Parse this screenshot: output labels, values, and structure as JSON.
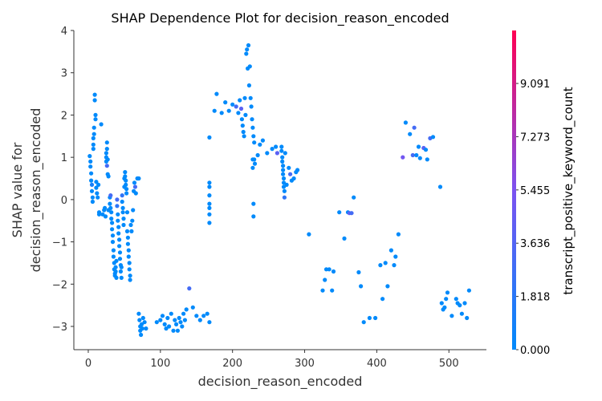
{
  "chart_data": {
    "type": "scatter",
    "title": "SHAP Dependence Plot for decision_reason_encoded",
    "xlabel": "decision_reason_encoded",
    "ylabel_lines": [
      "SHAP value for",
      "decision_reason_encoded"
    ],
    "xlim": [
      -20,
      552
    ],
    "ylim": [
      -3.55,
      4.0
    ],
    "xticks": [
      0,
      100,
      200,
      300,
      400,
      500
    ],
    "yticks": [
      -3,
      -2,
      -1,
      0,
      1,
      2,
      3,
      4
    ],
    "grid": false,
    "colorbar": {
      "label": "transcript_positive_keyword_count",
      "range": [
        0,
        10.9
      ],
      "ticks": [
        "0.000",
        "1.818",
        "3.636",
        "5.455",
        "7.273",
        "9.091"
      ],
      "tick_values": [
        0.0,
        1.818,
        3.636,
        5.455,
        7.273,
        9.091
      ],
      "colors": [
        "#008afb",
        "#7c52f0",
        "#ff0052"
      ]
    },
    "points": [
      [
        2,
        1.03,
        0
      ],
      [
        3,
        0.9,
        0
      ],
      [
        3,
        0.78,
        0
      ],
      [
        4,
        0.62,
        0
      ],
      [
        4,
        0.45,
        0
      ],
      [
        5,
        0.35,
        1
      ],
      [
        5,
        0.2,
        0
      ],
      [
        6,
        0.05,
        0
      ],
      [
        6,
        -0.05,
        0
      ],
      [
        7,
        1.2,
        0
      ],
      [
        7,
        1.3,
        0
      ],
      [
        7,
        1.45,
        0
      ],
      [
        8,
        1.55,
        0
      ],
      [
        8,
        1.7,
        0
      ],
      [
        9,
        2.35,
        0
      ],
      [
        9,
        2.48,
        0
      ],
      [
        10,
        2.0,
        0
      ],
      [
        10,
        1.9,
        0
      ],
      [
        11,
        0.42,
        0
      ],
      [
        11,
        0.28,
        0
      ],
      [
        12,
        0.15,
        0
      ],
      [
        13,
        0.05,
        0
      ],
      [
        14,
        0.35,
        0
      ],
      [
        15,
        -0.3,
        0
      ],
      [
        15,
        -0.35,
        0
      ],
      [
        18,
        1.78,
        0
      ],
      [
        20,
        -0.35,
        0
      ],
      [
        22,
        -0.25,
        0
      ],
      [
        23,
        -0.2,
        0
      ],
      [
        24,
        -0.4,
        0
      ],
      [
        25,
        1.0,
        0
      ],
      [
        25,
        0.9,
        0
      ],
      [
        25,
        1.1,
        0
      ],
      [
        26,
        1.2,
        0
      ],
      [
        26,
        1.35,
        0
      ],
      [
        26,
        0.8,
        3
      ],
      [
        27,
        0.95,
        0
      ],
      [
        27,
        0.6,
        0
      ],
      [
        28,
        0.55,
        0
      ],
      [
        28,
        -0.25,
        0
      ],
      [
        30,
        0.05,
        0
      ],
      [
        30,
        -0.1,
        0
      ],
      [
        31,
        0.1,
        3
      ],
      [
        31,
        -0.2,
        0
      ],
      [
        32,
        -0.3,
        0
      ],
      [
        32,
        -0.45,
        0
      ],
      [
        33,
        -0.55,
        0
      ],
      [
        33,
        -0.7,
        0
      ],
      [
        34,
        -0.85,
        0
      ],
      [
        34,
        -1.0,
        0
      ],
      [
        35,
        -1.2,
        0
      ],
      [
        35,
        -1.35,
        0
      ],
      [
        36,
        -1.5,
        0
      ],
      [
        36,
        -1.65,
        0
      ],
      [
        37,
        -1.75,
        0
      ],
      [
        37,
        -1.8,
        0
      ],
      [
        38,
        -1.7,
        0
      ],
      [
        38,
        -1.6,
        0
      ],
      [
        39,
        -1.85,
        0
      ],
      [
        39,
        -1.45,
        0
      ],
      [
        40,
        0.0,
        3
      ],
      [
        40,
        -0.15,
        2
      ],
      [
        41,
        -0.35,
        0
      ],
      [
        41,
        -0.5,
        0
      ],
      [
        42,
        -0.65,
        0
      ],
      [
        42,
        -0.8,
        0
      ],
      [
        43,
        -0.95,
        0
      ],
      [
        43,
        -1.1,
        0
      ],
      [
        44,
        -1.25,
        0
      ],
      [
        44,
        -1.4,
        0
      ],
      [
        45,
        -1.55,
        0
      ],
      [
        45,
        -1.7,
        0
      ],
      [
        46,
        -1.85,
        0
      ],
      [
        46,
        -1.6,
        0
      ],
      [
        47,
        0.1,
        2
      ],
      [
        47,
        -0.05,
        0
      ],
      [
        48,
        -0.2,
        0
      ],
      [
        48,
        -0.3,
        0
      ],
      [
        49,
        -0.45,
        0
      ],
      [
        49,
        -0.6,
        0
      ],
      [
        50,
        0.3,
        0
      ],
      [
        50,
        0.5,
        0
      ],
      [
        51,
        0.65,
        0
      ],
      [
        51,
        0.55,
        0
      ],
      [
        52,
        0.45,
        0
      ],
      [
        52,
        0.35,
        0
      ],
      [
        53,
        0.25,
        0
      ],
      [
        53,
        0.15,
        0
      ],
      [
        54,
        -0.3,
        0
      ],
      [
        54,
        -0.75,
        0
      ],
      [
        55,
        -0.9,
        0
      ],
      [
        55,
        -1.05,
        0
      ],
      [
        56,
        -1.2,
        0
      ],
      [
        56,
        -1.35,
        0
      ],
      [
        57,
        -1.5,
        0
      ],
      [
        57,
        -1.65,
        0
      ],
      [
        58,
        -1.8,
        0
      ],
      [
        58,
        -1.9,
        0
      ],
      [
        59,
        -0.6,
        0
      ],
      [
        60,
        -0.75,
        0
      ],
      [
        61,
        -0.5,
        0
      ],
      [
        62,
        -0.25,
        0
      ],
      [
        63,
        0.2,
        0
      ],
      [
        64,
        0.4,
        0
      ],
      [
        65,
        0.3,
        3
      ],
      [
        66,
        0.15,
        0
      ],
      [
        68,
        0.5,
        0
      ],
      [
        70,
        0.5,
        0
      ],
      [
        70,
        -2.7,
        0
      ],
      [
        71,
        -2.85,
        0
      ],
      [
        72,
        -3.0,
        0
      ],
      [
        72,
        -3.1,
        0
      ],
      [
        73,
        -3.2,
        0
      ],
      [
        74,
        -2.95,
        0
      ],
      [
        75,
        -3.05,
        0
      ],
      [
        76,
        -2.8,
        0
      ],
      [
        78,
        -2.9,
        0
      ],
      [
        80,
        -3.05,
        0
      ],
      [
        95,
        -2.9,
        0
      ],
      [
        100,
        -2.85,
        0
      ],
      [
        103,
        -2.75,
        0
      ],
      [
        106,
        -2.95,
        0
      ],
      [
        108,
        -3.05,
        0
      ],
      [
        110,
        -2.8,
        0
      ],
      [
        112,
        -3.0,
        0
      ],
      [
        115,
        -2.7,
        0
      ],
      [
        118,
        -3.1,
        0
      ],
      [
        120,
        -2.85,
        0
      ],
      [
        122,
        -2.95,
        0
      ],
      [
        124,
        -3.1,
        0
      ],
      [
        126,
        -2.8,
        0
      ],
      [
        128,
        -2.9,
        0
      ],
      [
        130,
        -3.0,
        0
      ],
      [
        132,
        -2.7,
        0
      ],
      [
        134,
        -2.85,
        0
      ],
      [
        136,
        -2.6,
        0
      ],
      [
        140,
        -2.1,
        3
      ],
      [
        145,
        -2.55,
        0
      ],
      [
        150,
        -2.75,
        0
      ],
      [
        155,
        -2.85,
        0
      ],
      [
        160,
        -2.75,
        0
      ],
      [
        165,
        -2.7,
        0
      ],
      [
        168,
        -2.9,
        0
      ],
      [
        168,
        0.4,
        0
      ],
      [
        168,
        0.3,
        0
      ],
      [
        168,
        0.1,
        0
      ],
      [
        168,
        -0.1,
        0
      ],
      [
        168,
        -0.2,
        0
      ],
      [
        168,
        -0.35,
        0
      ],
      [
        168,
        -0.55,
        0
      ],
      [
        168,
        1.47,
        0
      ],
      [
        175,
        2.1,
        0
      ],
      [
        178,
        2.5,
        0
      ],
      [
        185,
        2.05,
        0
      ],
      [
        190,
        2.3,
        0
      ],
      [
        195,
        2.1,
        0
      ],
      [
        200,
        2.25,
        0
      ],
      [
        205,
        2.2,
        3
      ],
      [
        208,
        2.05,
        0
      ],
      [
        210,
        2.35,
        0
      ],
      [
        212,
        2.15,
        4
      ],
      [
        213,
        1.9,
        0
      ],
      [
        214,
        1.75,
        0
      ],
      [
        215,
        1.6,
        0
      ],
      [
        216,
        1.5,
        0
      ],
      [
        217,
        2.4,
        0
      ],
      [
        218,
        2.0,
        0
      ],
      [
        219,
        3.45,
        0
      ],
      [
        220,
        3.55,
        0
      ],
      [
        221,
        3.1,
        0
      ],
      [
        222,
        3.65,
        0
      ],
      [
        223,
        2.7,
        0
      ],
      [
        224,
        3.15,
        0
      ],
      [
        225,
        2.4,
        0
      ],
      [
        226,
        2.2,
        0
      ],
      [
        227,
        1.9,
        0
      ],
      [
        228,
        1.7,
        0
      ],
      [
        229,
        1.5,
        0
      ],
      [
        230,
        1.35,
        0
      ],
      [
        228,
        0.95,
        0
      ],
      [
        228,
        0.75,
        0
      ],
      [
        229,
        -0.1,
        0
      ],
      [
        229,
        -0.4,
        0
      ],
      [
        230,
        0.95,
        0
      ],
      [
        231,
        0.85,
        0
      ],
      [
        235,
        1.05,
        0
      ],
      [
        238,
        1.3,
        0
      ],
      [
        242,
        1.4,
        0
      ],
      [
        248,
        1.1,
        0
      ],
      [
        255,
        1.2,
        0
      ],
      [
        260,
        1.25,
        0
      ],
      [
        262,
        1.1,
        4
      ],
      [
        268,
        1.25,
        0
      ],
      [
        268,
        1.15,
        0
      ],
      [
        269,
        1.0,
        0
      ],
      [
        269,
        0.9,
        0
      ],
      [
        270,
        0.8,
        0
      ],
      [
        270,
        0.7,
        0
      ],
      [
        270,
        0.6,
        0
      ],
      [
        271,
        0.5,
        0
      ],
      [
        271,
        0.4,
        0
      ],
      [
        271,
        0.3,
        0
      ],
      [
        272,
        0.2,
        0
      ],
      [
        272,
        0.05,
        2
      ],
      [
        273,
        1.1,
        0
      ],
      [
        275,
        0.35,
        0
      ],
      [
        278,
        0.75,
        0
      ],
      [
        280,
        0.6,
        3
      ],
      [
        282,
        0.45,
        0
      ],
      [
        285,
        0.5,
        0
      ],
      [
        288,
        0.65,
        0
      ],
      [
        290,
        0.7,
        0
      ],
      [
        306,
        -0.82,
        0
      ],
      [
        325,
        -2.15,
        0
      ],
      [
        328,
        -1.9,
        0
      ],
      [
        330,
        -1.65,
        0
      ],
      [
        334,
        -1.65,
        0
      ],
      [
        338,
        -2.15,
        0
      ],
      [
        340,
        -1.7,
        0
      ],
      [
        348,
        -0.3,
        0
      ],
      [
        355,
        -0.92,
        0
      ],
      [
        360,
        -0.3,
        0
      ],
      [
        362,
        -0.32,
        4
      ],
      [
        365,
        -0.32,
        3
      ],
      [
        368,
        0.05,
        0
      ],
      [
        375,
        -1.72,
        0
      ],
      [
        378,
        -2.05,
        0
      ],
      [
        382,
        -2.9,
        0
      ],
      [
        390,
        -2.8,
        0
      ],
      [
        398,
        -2.8,
        0
      ],
      [
        405,
        -1.55,
        0
      ],
      [
        408,
        -2.35,
        0
      ],
      [
        412,
        -1.5,
        0
      ],
      [
        415,
        -2.05,
        0
      ],
      [
        420,
        -1.2,
        0
      ],
      [
        424,
        -1.55,
        0
      ],
      [
        426,
        -1.35,
        0
      ],
      [
        430,
        -0.82,
        0
      ],
      [
        436,
        1.0,
        5
      ],
      [
        440,
        1.82,
        0
      ],
      [
        446,
        1.55,
        0
      ],
      [
        450,
        1.05,
        3
      ],
      [
        452,
        1.7,
        3
      ],
      [
        455,
        1.05,
        0
      ],
      [
        458,
        1.25,
        0
      ],
      [
        460,
        0.98,
        0
      ],
      [
        465,
        1.22,
        4
      ],
      [
        468,
        1.18,
        0
      ],
      [
        470,
        0.95,
        0
      ],
      [
        474,
        1.45,
        3
      ],
      [
        478,
        1.48,
        0
      ],
      [
        488,
        0.3,
        0
      ],
      [
        490,
        -2.45,
        0
      ],
      [
        492,
        -2.6,
        0
      ],
      [
        494,
        -2.55,
        0
      ],
      [
        496,
        -2.35,
        0
      ],
      [
        498,
        -2.2,
        0
      ],
      [
        504,
        -2.75,
        0
      ],
      [
        510,
        -2.35,
        0
      ],
      [
        512,
        -2.45,
        0
      ],
      [
        515,
        -2.5,
        0
      ],
      [
        518,
        -2.7,
        0
      ],
      [
        522,
        -2.45,
        0
      ],
      [
        525,
        -2.8,
        0
      ],
      [
        528,
        -2.15,
        0
      ]
    ]
  }
}
